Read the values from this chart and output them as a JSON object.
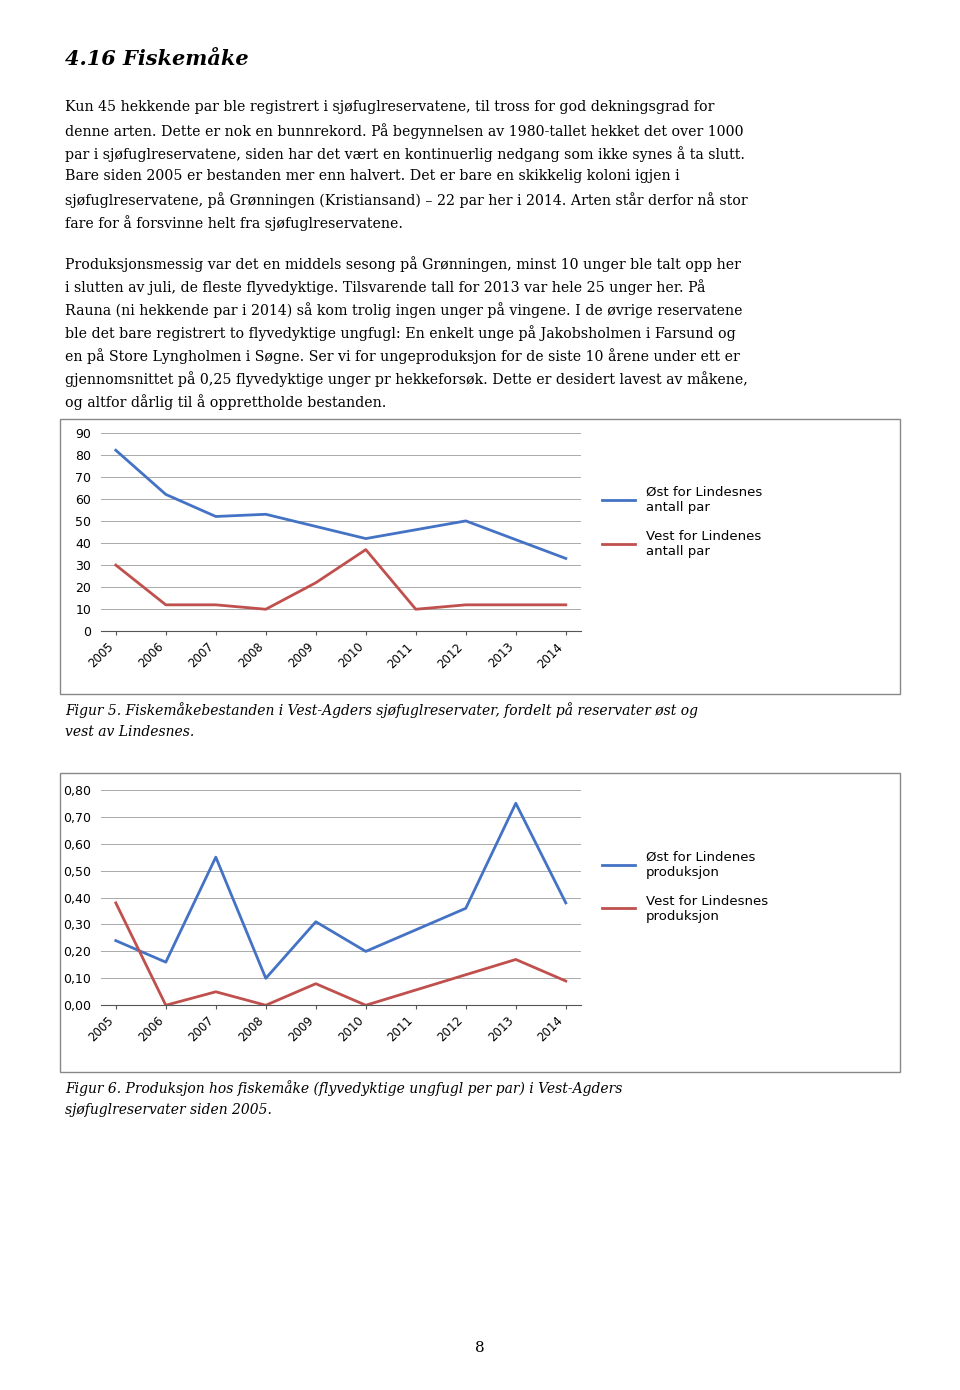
{
  "title": "4.16 Fiskemåke",
  "para1_lines": [
    "Kun 45 hekkende par ble registrert i sjøfuglreservatene, til tross for god dekningsgrad for",
    "denne arten. Dette er nok en bunnrekord. På begynnelsen av 1980-tallet hekket det over 1000",
    "par i sjøfuglreservatene, siden har det vært en kontinuerlig nedgang som ikke synes å ta slutt.",
    "Bare siden 2005 er bestanden mer enn halvert. Det er bare en skikkelig koloni igjen i",
    "sjøfuglreservatene, på Grønningen (Kristiansand) – 22 par her i 2014. Arten står derfor nå stor",
    "fare for å forsvinne helt fra sjøfuglreservatene."
  ],
  "para2_lines": [
    "Produksjonsmessig var det en middels sesong på Grønningen, minst 10 unger ble talt opp her",
    "i slutten av juli, de fleste flyvedyktige. Tilsvarende tall for 2013 var hele 25 unger her. På",
    "Rauna (ni hekkende par i 2014) så kom trolig ingen unger på vingene. I de øvrige reservatene",
    "ble det bare registrert to flyvedyktige ungfugl: En enkelt unge på Jakobsholmen i Farsund og",
    "en på Store Lyngholmen i Søgne. Ser vi for ungeproduksjon for de siste 10 årene under ett er",
    "gjennomsnittet på 0,25 flyvedyktige unger pr hekkeforsøk. Dette er desidert lavest av måkene,",
    "og altfor dårlig til å opprettholde bestanden."
  ],
  "years": [
    2005,
    2006,
    2007,
    2008,
    2009,
    2010,
    2011,
    2012,
    2013,
    2014
  ],
  "chart1_blue": [
    82,
    62,
    52,
    53,
    42,
    50,
    33
  ],
  "chart1_blue_years": [
    2005,
    2006,
    2007,
    2008,
    2010,
    2012,
    2014
  ],
  "chart1_red": [
    30,
    12,
    12,
    10,
    22,
    37,
    10,
    12,
    12
  ],
  "chart1_red_years": [
    2005,
    2006,
    2007,
    2008,
    2009,
    2010,
    2011,
    2012,
    2014
  ],
  "chart1_ylim": [
    0,
    90
  ],
  "chart1_yticks": [
    0,
    10,
    20,
    30,
    40,
    50,
    60,
    70,
    80,
    90
  ],
  "chart1_legend1": "Øst for Lindesnes\nantall par",
  "chart1_legend2": "Vest for Lindenes\nantall par",
  "chart1_caption_line1": "Figur 5. Fiskemåkebestanden i Vest-Agders sjøfuglreservater, fordelt på reservater øst og",
  "chart1_caption_line2": "vest av Lindesnes.",
  "chart2_blue": [
    0.24,
    0.16,
    0.55,
    0.1,
    0.31,
    0.2,
    0.36,
    0.75,
    0.38
  ],
  "chart2_blue_years": [
    2005,
    2006,
    2007,
    2008,
    2009,
    2010,
    2012,
    2013,
    2014
  ],
  "chart2_red": [
    0.38,
    0.0,
    0.05,
    0.0,
    0.08,
    0.0,
    0.17,
    0.09
  ],
  "chart2_red_years": [
    2005,
    2006,
    2007,
    2008,
    2009,
    2010,
    2013,
    2014
  ],
  "chart2_ylim": [
    0.0,
    0.8
  ],
  "chart2_yticks": [
    0.0,
    0.1,
    0.2,
    0.3,
    0.4,
    0.5,
    0.6,
    0.7,
    0.8
  ],
  "chart2_legend1": "Øst for Lindenes\nproduksjon",
  "chart2_legend2": "Vest for Lindesnes\nproduksjon",
  "chart2_caption_line1": "Figur 6. Produksjon hos fiskemåke (flyvedyktige ungfugl per par) i Vest-Agders",
  "chart2_caption_line2": "sjøfuglreservater siden 2005.",
  "page_number": "8",
  "blue_color": "#4472C4",
  "red_color": "#C0504D",
  "bg_color": "#ffffff",
  "chart_bg": "#ffffff",
  "grid_color": "#AAAAAA",
  "text_color": "#000000",
  "border_color": "#888888"
}
